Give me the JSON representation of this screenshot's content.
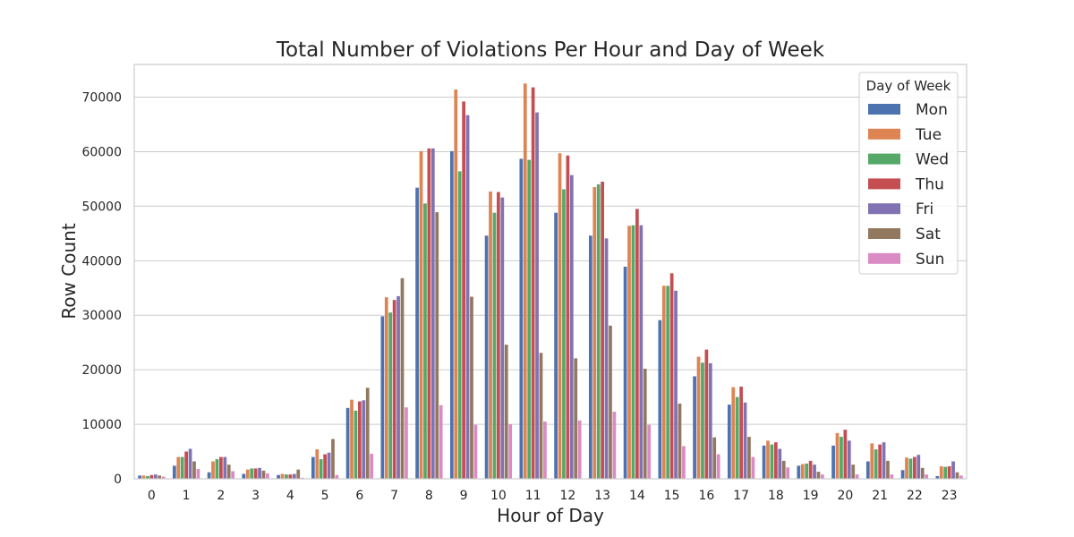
{
  "chart_data": {
    "type": "bar",
    "title": "Total Number of Violations Per Hour and Day of Week",
    "xlabel": "Hour of Day",
    "ylabel": "Row Count",
    "ylim": [
      0,
      76000
    ],
    "yticks": [
      0,
      10000,
      20000,
      30000,
      40000,
      50000,
      60000,
      70000
    ],
    "grid": "horizontal",
    "legend": {
      "title": "Day of Week",
      "placement": "top-right"
    },
    "categories": [
      "0",
      "1",
      "2",
      "3",
      "4",
      "5",
      "6",
      "7",
      "8",
      "9",
      "10",
      "11",
      "12",
      "13",
      "14",
      "15",
      "16",
      "17",
      "18",
      "19",
      "20",
      "21",
      "22",
      "23"
    ],
    "series": [
      {
        "name": "Mon",
        "color": "#4c72b0",
        "values": [
          600,
          2400,
          1200,
          900,
          700,
          4000,
          13000,
          29800,
          53400,
          60100,
          44600,
          58700,
          48800,
          44600,
          38900,
          29100,
          18800,
          13600,
          6100,
          2400,
          6100,
          3200,
          1600,
          500
        ]
      },
      {
        "name": "Tue",
        "color": "#dd8452",
        "values": [
          600,
          4000,
          3200,
          1700,
          900,
          5400,
          14500,
          33300,
          60100,
          71400,
          52700,
          72500,
          59700,
          53500,
          46400,
          35400,
          22400,
          16800,
          7000,
          2700,
          8400,
          6500,
          3900,
          2300
        ]
      },
      {
        "name": "Wed",
        "color": "#55a868",
        "values": [
          500,
          4000,
          3600,
          1900,
          800,
          3600,
          12500,
          30500,
          50500,
          56400,
          48800,
          58500,
          53100,
          54000,
          46500,
          35400,
          21300,
          15000,
          6300,
          2800,
          7700,
          5400,
          3700,
          2200
        ]
      },
      {
        "name": "Thu",
        "color": "#c44e52",
        "values": [
          700,
          5000,
          4000,
          1900,
          800,
          4500,
          14200,
          32800,
          60600,
          69200,
          52600,
          71800,
          59300,
          54500,
          49500,
          37700,
          23700,
          16900,
          6700,
          3300,
          9000,
          6300,
          4000,
          2300
        ]
      },
      {
        "name": "Fri",
        "color": "#8172b3",
        "values": [
          800,
          5500,
          4000,
          2000,
          900,
          4800,
          14400,
          33500,
          60600,
          66700,
          51600,
          67200,
          55700,
          44100,
          46500,
          34500,
          21200,
          14000,
          5500,
          2600,
          7000,
          6700,
          4400,
          3200
        ]
      },
      {
        "name": "Sat",
        "color": "#937860",
        "values": [
          600,
          3200,
          2600,
          1500,
          1700,
          7300,
          16700,
          36800,
          48900,
          33400,
          24600,
          23100,
          22100,
          28100,
          20200,
          13800,
          7600,
          7700,
          3300,
          1300,
          2600,
          3300,
          2000,
          1200
        ]
      },
      {
        "name": "Sun",
        "color": "#da8bc3",
        "values": [
          400,
          1800,
          1400,
          1000,
          200,
          700,
          4600,
          13100,
          13500,
          9900,
          10000,
          10500,
          10700,
          12300,
          9900,
          6000,
          4500,
          4000,
          2100,
          800,
          800,
          800,
          800,
          600
        ]
      }
    ]
  }
}
